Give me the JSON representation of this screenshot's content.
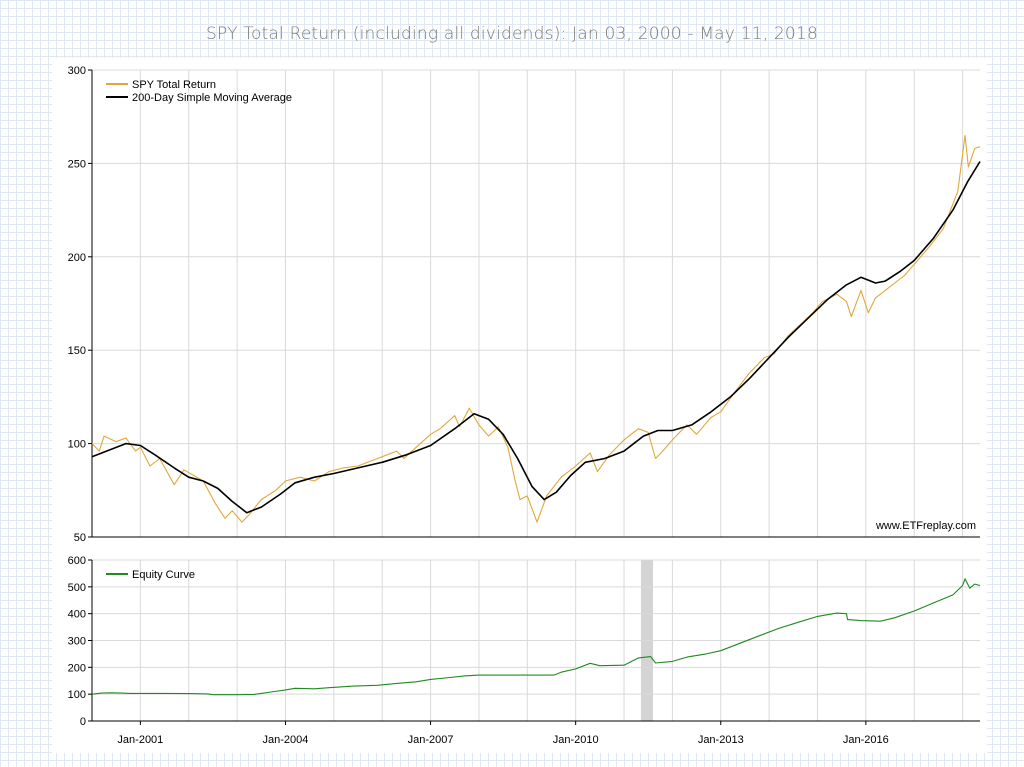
{
  "page": {
    "title": "SPY Total Return (including all dividends): Jan 03, 2000 - May 11, 2018"
  },
  "chart_data": [
    {
      "type": "line",
      "panel": "top",
      "title": "SPY Total Return (including all dividends): Jan 03, 2000 - May 11, 2018",
      "ylim": [
        50,
        300
      ],
      "yticks": [
        "300",
        "250",
        "200",
        "150",
        "100",
        "50"
      ],
      "xlim": [
        2000.0,
        2018.36
      ],
      "watermark": "www.ETFreplay.com",
      "legend_position": "top-left",
      "grid": true,
      "series": [
        {
          "name": "SPY Total Return",
          "color": "#e0a83a",
          "points": [
            [
              2000.0,
              100
            ],
            [
              2000.15,
              96
            ],
            [
              2000.25,
              104
            ],
            [
              2000.5,
              101
            ],
            [
              2000.7,
              103
            ],
            [
              2000.9,
              96
            ],
            [
              2001.0,
              98
            ],
            [
              2001.2,
              88
            ],
            [
              2001.4,
              92
            ],
            [
              2001.7,
              78
            ],
            [
              2001.9,
              86
            ],
            [
              2002.1,
              83
            ],
            [
              2002.3,
              80
            ],
            [
              2002.55,
              68
            ],
            [
              2002.75,
              60
            ],
            [
              2002.9,
              64
            ],
            [
              2003.1,
              58
            ],
            [
              2003.25,
              62
            ],
            [
              2003.5,
              70
            ],
            [
              2003.8,
              75
            ],
            [
              2004.0,
              80
            ],
            [
              2004.3,
              82
            ],
            [
              2004.6,
              80
            ],
            [
              2004.9,
              85
            ],
            [
              2005.2,
              87
            ],
            [
              2005.5,
              88
            ],
            [
              2005.8,
              91
            ],
            [
              2006.0,
              93
            ],
            [
              2006.3,
              96
            ],
            [
              2006.45,
              92
            ],
            [
              2006.7,
              98
            ],
            [
              2007.0,
              105
            ],
            [
              2007.2,
              108
            ],
            [
              2007.5,
              115
            ],
            [
              2007.6,
              109
            ],
            [
              2007.8,
              119
            ],
            [
              2008.0,
              110
            ],
            [
              2008.2,
              104
            ],
            [
              2008.4,
              109
            ],
            [
              2008.6,
              98
            ],
            [
              2008.75,
              80
            ],
            [
              2008.85,
              70
            ],
            [
              2009.0,
              72
            ],
            [
              2009.2,
              58
            ],
            [
              2009.4,
              72
            ],
            [
              2009.7,
              82
            ],
            [
              2010.0,
              88
            ],
            [
              2010.3,
              95
            ],
            [
              2010.45,
              85
            ],
            [
              2010.7,
              94
            ],
            [
              2011.0,
              102
            ],
            [
              2011.3,
              108
            ],
            [
              2011.5,
              106
            ],
            [
              2011.65,
              92
            ],
            [
              2011.8,
              96
            ],
            [
              2012.0,
              102
            ],
            [
              2012.3,
              110
            ],
            [
              2012.5,
              105
            ],
            [
              2012.8,
              114
            ],
            [
              2013.0,
              117
            ],
            [
              2013.3,
              128
            ],
            [
              2013.6,
              138
            ],
            [
              2013.9,
              146
            ],
            [
              2014.1,
              148
            ],
            [
              2014.4,
              158
            ],
            [
              2014.7,
              165
            ],
            [
              2014.9,
              170
            ],
            [
              2015.1,
              176
            ],
            [
              2015.4,
              180
            ],
            [
              2015.6,
              176
            ],
            [
              2015.7,
              168
            ],
            [
              2015.9,
              182
            ],
            [
              2016.05,
              170
            ],
            [
              2016.2,
              178
            ],
            [
              2016.5,
              184
            ],
            [
              2016.8,
              190
            ],
            [
              2017.0,
              196
            ],
            [
              2017.3,
              205
            ],
            [
              2017.6,
              215
            ],
            [
              2017.9,
              235
            ],
            [
              2018.05,
              265
            ],
            [
              2018.12,
              248
            ],
            [
              2018.25,
              258
            ],
            [
              2018.36,
              259
            ]
          ]
        },
        {
          "name": "200-Day Simple Moving Average",
          "color": "#000000",
          "points": [
            [
              2000.0,
              93
            ],
            [
              2000.3,
              96
            ],
            [
              2000.7,
              100
            ],
            [
              2001.0,
              99
            ],
            [
              2001.3,
              94
            ],
            [
              2001.7,
              87
            ],
            [
              2002.0,
              82
            ],
            [
              2002.3,
              80
            ],
            [
              2002.6,
              76
            ],
            [
              2002.9,
              69
            ],
            [
              2003.2,
              63
            ],
            [
              2003.5,
              66
            ],
            [
              2003.9,
              73
            ],
            [
              2004.2,
              79
            ],
            [
              2004.6,
              82
            ],
            [
              2005.0,
              84
            ],
            [
              2005.5,
              87
            ],
            [
              2006.0,
              90
            ],
            [
              2006.5,
              94
            ],
            [
              2007.0,
              99
            ],
            [
              2007.5,
              108
            ],
            [
              2007.9,
              116
            ],
            [
              2008.2,
              113
            ],
            [
              2008.5,
              105
            ],
            [
              2008.8,
              92
            ],
            [
              2009.1,
              77
            ],
            [
              2009.35,
              70
            ],
            [
              2009.6,
              74
            ],
            [
              2009.9,
              83
            ],
            [
              2010.2,
              90
            ],
            [
              2010.6,
              92
            ],
            [
              2011.0,
              96
            ],
            [
              2011.4,
              104
            ],
            [
              2011.7,
              107
            ],
            [
              2012.0,
              107
            ],
            [
              2012.4,
              110
            ],
            [
              2012.8,
              117
            ],
            [
              2013.2,
              125
            ],
            [
              2013.6,
              135
            ],
            [
              2014.0,
              146
            ],
            [
              2014.4,
              157
            ],
            [
              2014.8,
              167
            ],
            [
              2015.2,
              177
            ],
            [
              2015.6,
              185
            ],
            [
              2015.9,
              189
            ],
            [
              2016.2,
              186
            ],
            [
              2016.4,
              187
            ],
            [
              2016.7,
              192
            ],
            [
              2017.0,
              198
            ],
            [
              2017.4,
              210
            ],
            [
              2017.8,
              225
            ],
            [
              2018.1,
              240
            ],
            [
              2018.36,
              251
            ]
          ]
        }
      ]
    },
    {
      "type": "line",
      "panel": "bottom",
      "ylim": [
        0,
        600
      ],
      "yticks": [
        "600",
        "500",
        "400",
        "300",
        "200",
        "100",
        "0"
      ],
      "xlim": [
        2000.0,
        2018.36
      ],
      "xticks": [
        {
          "label": "Jan-2001",
          "year": 2001
        },
        {
          "label": "Jan-2004",
          "year": 2004
        },
        {
          "label": "Jan-2007",
          "year": 2007
        },
        {
          "label": "Jan-2010",
          "year": 2010
        },
        {
          "label": "Jan-2013",
          "year": 2013
        },
        {
          "label": "Jan-2016",
          "year": 2016
        }
      ],
      "shaded_period": [
        2011.35,
        2011.6
      ],
      "legend_position": "top-left",
      "grid": true,
      "series": [
        {
          "name": "Equity Curve",
          "color": "#1f8a1f",
          "points": [
            [
              2000.0,
              100
            ],
            [
              2000.2,
              104
            ],
            [
              2000.4,
              105
            ],
            [
              2000.6,
              104
            ],
            [
              2000.8,
              103
            ],
            [
              2001.0,
              103
            ],
            [
              2001.5,
              103
            ],
            [
              2002.0,
              102
            ],
            [
              2002.4,
              101
            ],
            [
              2002.5,
              98
            ],
            [
              2003.0,
              98
            ],
            [
              2003.35,
              99
            ],
            [
              2003.7,
              108
            ],
            [
              2004.0,
              116
            ],
            [
              2004.2,
              122
            ],
            [
              2004.6,
              120
            ],
            [
              2004.9,
              124
            ],
            [
              2005.4,
              130
            ],
            [
              2005.9,
              133
            ],
            [
              2006.3,
              140
            ],
            [
              2006.7,
              146
            ],
            [
              2007.0,
              155
            ],
            [
              2007.4,
              162
            ],
            [
              2007.7,
              168
            ],
            [
              2008.0,
              171
            ],
            [
              2008.6,
              171
            ],
            [
              2009.0,
              171
            ],
            [
              2009.55,
              171
            ],
            [
              2009.7,
              182
            ],
            [
              2010.0,
              194
            ],
            [
              2010.3,
              215
            ],
            [
              2010.5,
              206
            ],
            [
              2011.0,
              208
            ],
            [
              2011.3,
              235
            ],
            [
              2011.55,
              240
            ],
            [
              2011.65,
              216
            ],
            [
              2012.0,
              222
            ],
            [
              2012.3,
              238
            ],
            [
              2012.7,
              250
            ],
            [
              2013.0,
              262
            ],
            [
              2013.4,
              290
            ],
            [
              2013.8,
              318
            ],
            [
              2014.2,
              345
            ],
            [
              2014.6,
              368
            ],
            [
              2015.0,
              390
            ],
            [
              2015.4,
              402
            ],
            [
              2015.6,
              400
            ],
            [
              2015.62,
              378
            ],
            [
              2015.9,
              374
            ],
            [
              2016.3,
              372
            ],
            [
              2016.6,
              385
            ],
            [
              2017.0,
              410
            ],
            [
              2017.4,
              440
            ],
            [
              2017.8,
              470
            ],
            [
              2018.0,
              505
            ],
            [
              2018.05,
              530
            ],
            [
              2018.15,
              495
            ],
            [
              2018.25,
              510
            ],
            [
              2018.36,
              505
            ]
          ]
        }
      ]
    }
  ]
}
